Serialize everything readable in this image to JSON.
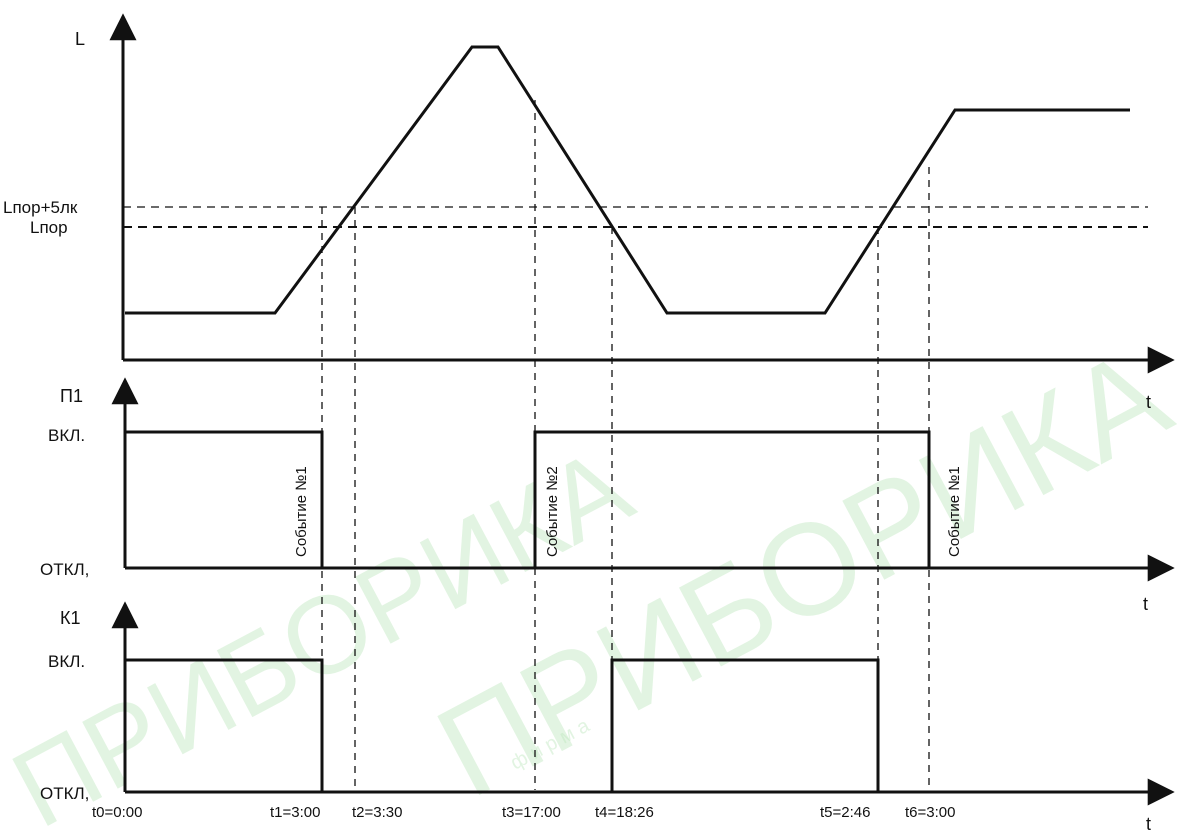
{
  "top_panel": {
    "y_label": "L",
    "x_label": "t",
    "threshold_plus_label": "Lпор+5лк",
    "threshold_label": "Lпор"
  },
  "p1_panel": {
    "y_label": "П1",
    "x_label": "t",
    "on_label": "ВКЛ.",
    "off_label": "ОТКЛ,",
    "events": [
      "Событие №1",
      "Событие №2",
      "Событие №1"
    ]
  },
  "k1_panel": {
    "y_label": "К1",
    "x_label": "t",
    "on_label": "ВКЛ.",
    "off_label": "ОТКЛ,"
  },
  "time_marks": [
    "t0=0:00",
    "t1=3:00",
    "t2=3:30",
    "t3=17:00",
    "t4=18:26",
    "t5=2:46",
    "t6=3:00"
  ],
  "watermark": {
    "brand": "ПРИБОРИКА",
    "small_text": "фирма"
  }
}
